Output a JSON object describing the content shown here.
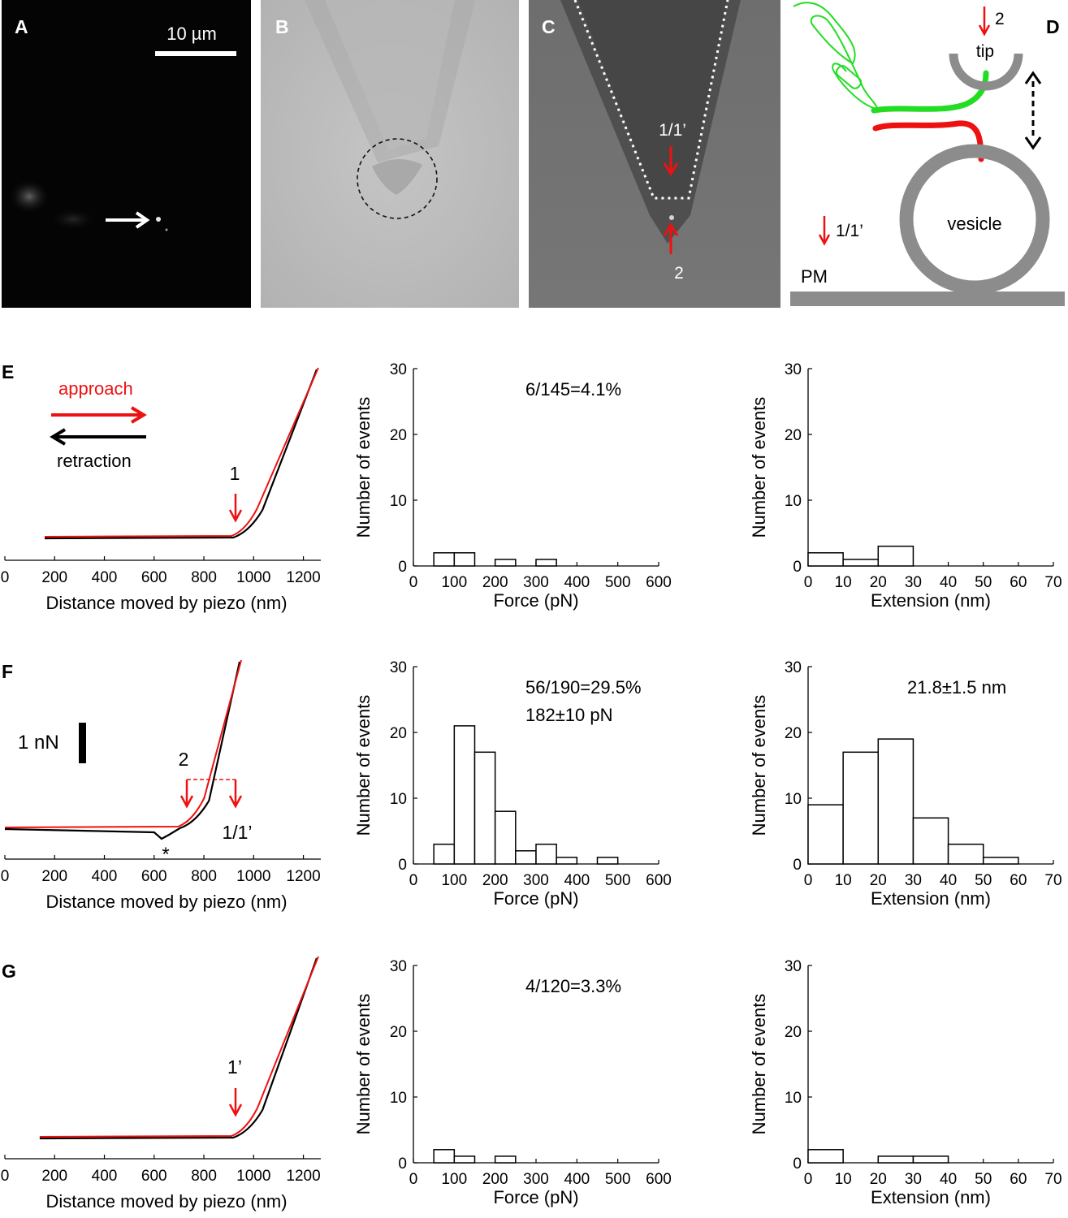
{
  "panels": {
    "A": {
      "letter": "A",
      "scale_label": "10 µm"
    },
    "B": {
      "letter": "B"
    },
    "C": {
      "letter": "C",
      "label_top": "1/1’",
      "label_bottom": "2"
    },
    "D": {
      "letter": "D",
      "tip": "tip",
      "vesicle": "vesicle",
      "pm": "PM",
      "arrow_top": "2",
      "arrow_left": "1/1’"
    },
    "E": {
      "letter": "E",
      "legend_approach": "approach",
      "legend_retraction": "retraction",
      "marker": "1"
    },
    "F": {
      "letter": "F",
      "scale_bar": "1 nN",
      "marker_left": "2",
      "marker_right": "1/1’",
      "star": "*"
    },
    "G": {
      "letter": "G",
      "marker": "1’"
    }
  },
  "force_curve_axis": {
    "xlabel": "Distance moved by piezo (nm)",
    "ticks": [
      0,
      200,
      400,
      600,
      800,
      1000,
      1200
    ],
    "xlim": [
      0,
      1270
    ]
  },
  "chart_data": [
    {
      "type": "bar",
      "panel": "E",
      "xlabel": "Force (pN)",
      "ylabel": "Number of events",
      "annotation": [
        "6/145=4.1%"
      ],
      "bin_edges": [
        50,
        100,
        150,
        200,
        250,
        300,
        350,
        400,
        450,
        500
      ],
      "values": [
        2,
        2,
        0,
        1,
        0,
        1,
        0,
        0,
        0
      ],
      "xlim": [
        0,
        600
      ],
      "ylim": [
        0,
        30
      ],
      "xticks": [
        0,
        100,
        200,
        300,
        400,
        500,
        600
      ],
      "yticks": [
        0,
        10,
        20,
        30
      ]
    },
    {
      "type": "bar",
      "panel": "E",
      "xlabel": "Extension (nm)",
      "ylabel": "Number of events",
      "annotation": [],
      "bin_edges": [
        0,
        10,
        20,
        30
      ],
      "values": [
        2,
        1,
        3
      ],
      "xlim": [
        0,
        70
      ],
      "ylim": [
        0,
        30
      ],
      "xticks": [
        0,
        10,
        20,
        30,
        40,
        50,
        60,
        70
      ],
      "yticks": [
        0,
        10,
        20,
        30
      ]
    },
    {
      "type": "bar",
      "panel": "F",
      "xlabel": "Force (pN)",
      "ylabel": "Number of events",
      "annotation": [
        "56/190=29.5%",
        "182±10 pN"
      ],
      "bin_edges": [
        50,
        100,
        150,
        200,
        250,
        300,
        350,
        400,
        450,
        500
      ],
      "values": [
        3,
        21,
        17,
        8,
        2,
        3,
        1,
        0,
        1
      ],
      "xlim": [
        0,
        600
      ],
      "ylim": [
        0,
        30
      ],
      "xticks": [
        0,
        100,
        200,
        300,
        400,
        500,
        600
      ],
      "yticks": [
        0,
        10,
        20,
        30
      ]
    },
    {
      "type": "bar",
      "panel": "F",
      "xlabel": "Extension (nm)",
      "ylabel": "Number of events",
      "annotation": [
        "21.8±1.5 nm"
      ],
      "bin_edges": [
        0,
        10,
        20,
        30,
        40,
        50,
        60
      ],
      "values": [
        9,
        17,
        19,
        7,
        3,
        1
      ],
      "xlim": [
        0,
        70
      ],
      "ylim": [
        0,
        30
      ],
      "xticks": [
        0,
        10,
        20,
        30,
        40,
        50,
        60,
        70
      ],
      "yticks": [
        0,
        10,
        20,
        30
      ]
    },
    {
      "type": "bar",
      "panel": "G",
      "xlabel": "Force (pN)",
      "ylabel": "Number of events",
      "annotation": [
        "4/120=3.3%"
      ],
      "bin_edges": [
        50,
        100,
        150,
        200,
        250
      ],
      "values": [
        2,
        1,
        0,
        1
      ],
      "xlim": [
        0,
        600
      ],
      "ylim": [
        0,
        30
      ],
      "xticks": [
        0,
        100,
        200,
        300,
        400,
        500,
        600
      ],
      "yticks": [
        0,
        10,
        20,
        30
      ]
    },
    {
      "type": "bar",
      "panel": "G",
      "xlabel": "Extension (nm)",
      "ylabel": "Number of events",
      "annotation": [],
      "bin_edges": [
        0,
        10,
        20,
        30,
        40
      ],
      "values": [
        2,
        0,
        1,
        1
      ],
      "xlim": [
        0,
        70
      ],
      "ylim": [
        0,
        30
      ],
      "xticks": [
        0,
        10,
        20,
        30,
        40,
        50,
        60,
        70
      ],
      "yticks": [
        0,
        10,
        20,
        30
      ]
    }
  ]
}
